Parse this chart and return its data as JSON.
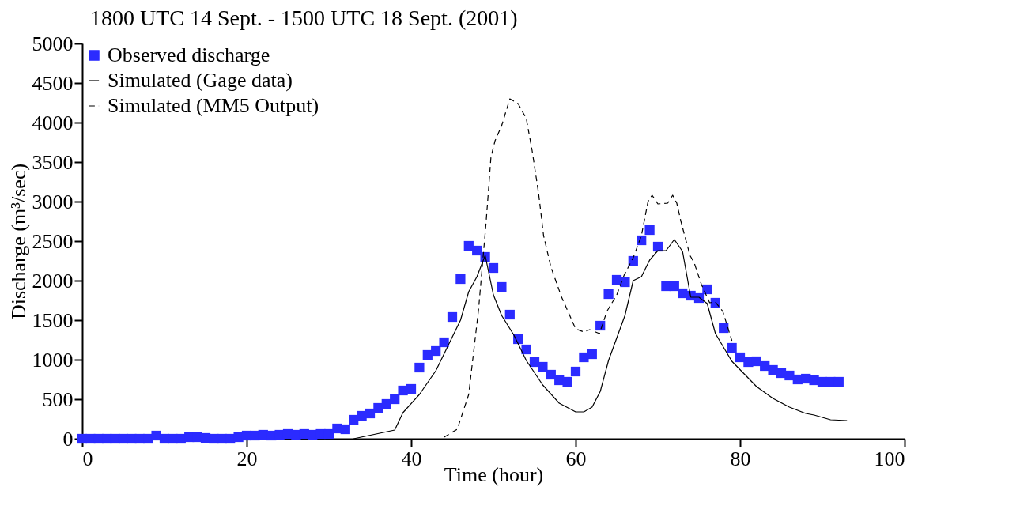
{
  "chart_data": {
    "type": "scatter",
    "title": "1800 UTC 14 Sept. - 1500 UTC 18 Sept. (2001)",
    "xlabel": "Time (hour)",
    "ylabel": "Discharge (m³/sec)",
    "xlim": [
      0,
      100
    ],
    "xticks": [
      0,
      20,
      40,
      60,
      80,
      100
    ],
    "ylim": [
      0,
      5000
    ],
    "yticks": [
      0,
      500,
      1000,
      1500,
      2000,
      2500,
      3000,
      3500,
      4000,
      4500,
      5000
    ],
    "grid": false,
    "legend": "top left",
    "series": [
      {
        "name": "Observed discharge",
        "marker": "square",
        "color": "#2b2bff",
        "x": [
          0,
          1,
          2,
          3,
          4,
          5,
          6,
          7,
          8,
          9,
          10,
          11,
          12,
          13,
          14,
          15,
          16,
          17,
          18,
          19,
          20,
          21,
          22,
          23,
          24,
          25,
          26,
          27,
          28,
          29,
          30,
          31,
          32,
          33,
          34,
          35,
          36,
          37,
          38,
          39,
          40,
          41,
          42,
          43,
          44,
          45,
          46,
          47,
          48,
          49,
          50,
          51,
          52,
          53,
          54,
          55,
          56,
          57,
          58,
          59,
          60,
          61,
          62,
          63,
          64,
          65,
          66,
          67,
          68,
          69,
          70,
          71,
          72,
          73,
          74,
          75,
          76,
          77,
          78,
          79,
          80,
          81,
          82,
          83,
          84,
          85,
          86,
          87,
          88,
          89,
          90,
          91,
          92
        ],
        "values": [
          0,
          0,
          0,
          0,
          0,
          0,
          0,
          0,
          0,
          40,
          0,
          0,
          0,
          20,
          20,
          10,
          0,
          0,
          0,
          20,
          40,
          40,
          50,
          40,
          50,
          60,
          50,
          60,
          50,
          60,
          60,
          130,
          120,
          240,
          290,
          320,
          390,
          440,
          500,
          610,
          630,
          900,
          1060,
          1110,
          1220,
          1540,
          2020,
          2440,
          2380,
          2300,
          2160,
          1920,
          1570,
          1260,
          1130,
          970,
          910,
          810,
          740,
          720,
          850,
          1030,
          1070,
          1430,
          1830,
          2010,
          1980,
          2250,
          2510,
          2640,
          2430,
          1930,
          1930,
          1840,
          1810,
          1780,
          1890,
          1720,
          1400,
          1150,
          1030,
          970,
          980,
          920,
          870,
          830,
          800,
          750,
          760,
          740,
          720,
          720,
          720
        ]
      },
      {
        "name": "Simulated (Gage data)",
        "type": "line",
        "line_style": "solid",
        "color": "#000000",
        "x": [
          33,
          38,
          39,
          41,
          43,
          46,
          47,
          48,
          49,
          50,
          51,
          52.5,
          54,
          56,
          58,
          60,
          61,
          62,
          63,
          64,
          66,
          67,
          68,
          69,
          70,
          71,
          72,
          73,
          74,
          75,
          76,
          77,
          79,
          82,
          84,
          86,
          88,
          89,
          91,
          93
        ],
        "values": [
          0,
          110,
          330,
          560,
          860,
          1500,
          1860,
          2050,
          2320,
          1820,
          1560,
          1310,
          990,
          680,
          450,
          340,
          340,
          400,
          600,
          990,
          1560,
          2000,
          2050,
          2260,
          2380,
          2380,
          2520,
          2370,
          1790,
          1790,
          1710,
          1330,
          980,
          660,
          510,
          400,
          320,
          300,
          240,
          230
        ]
      },
      {
        "name": "Simulated (MM5 Output)",
        "type": "line",
        "line_style": "dashed",
        "color": "#000000",
        "x": [
          44,
          45.6,
          47,
          48.2,
          49.1,
          49.7,
          50.2,
          51,
          52,
          53,
          54,
          54.7,
          55.5,
          56.1,
          57,
          58.3,
          60,
          61,
          61.7,
          62.9,
          63.8,
          65,
          65.9,
          67,
          68,
          68.8,
          69.3,
          70,
          71.2,
          71.8,
          72.3,
          72.8,
          73.9,
          74.4,
          75.3,
          76.3,
          77,
          77.9,
          79
        ],
        "values": [
          20,
          120,
          560,
          1640,
          2720,
          3560,
          3770,
          3960,
          4300,
          4240,
          4050,
          3650,
          3100,
          2570,
          2170,
          1790,
          1390,
          1350,
          1380,
          1330,
          1610,
          1820,
          2070,
          2290,
          2570,
          3000,
          3080,
          2970,
          2980,
          3080,
          2980,
          2750,
          2320,
          2230,
          1950,
          1720,
          1730,
          1610,
          1240
        ]
      }
    ]
  }
}
